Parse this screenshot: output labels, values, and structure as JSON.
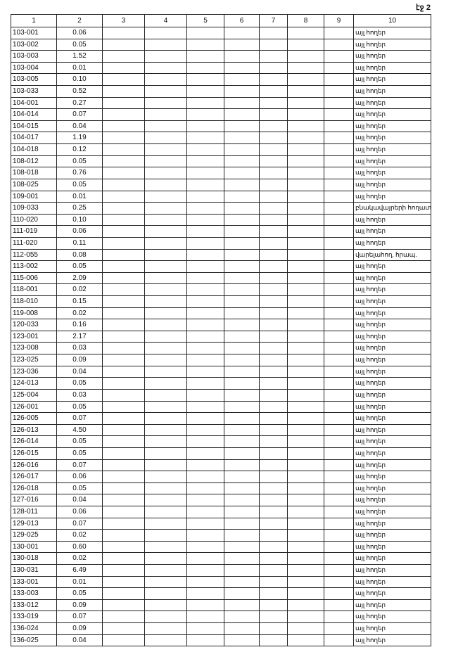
{
  "page_label": "էջ 2",
  "columns": [
    "1",
    "2",
    "3",
    "4",
    "5",
    "6",
    "7",
    "8",
    "9",
    "10"
  ],
  "rows": [
    [
      "103-001",
      "0.06",
      "այլ հողեր"
    ],
    [
      "103-002",
      "0.05",
      "այլ հողեր"
    ],
    [
      "103-003",
      "1.52",
      "այլ հողեր"
    ],
    [
      "103-004",
      "0.01",
      "այլ հողեր"
    ],
    [
      "103-005",
      "0.10",
      "այլ հողեր"
    ],
    [
      "103-033",
      "0.52",
      "այլ հողեր"
    ],
    [
      "104-001",
      "0.27",
      "այլ հողեր"
    ],
    [
      "104-014",
      "0.07",
      "այլ հողեր"
    ],
    [
      "104-015",
      "0.04",
      "այլ հողեր"
    ],
    [
      "104-017",
      "1.19",
      "այլ հողեր"
    ],
    [
      "104-018",
      "0.12",
      "այլ հողեր"
    ],
    [
      "108-012",
      "0.05",
      "այլ հողեր"
    ],
    [
      "108-018",
      "0.76",
      "այլ հողեր"
    ],
    [
      "108-025",
      "0.05",
      "այլ հողեր"
    ],
    [
      "109-001",
      "0.01",
      "այլ հողեր"
    ],
    [
      "109-033",
      "0.25",
      "բնակավայրերի հողատ."
    ],
    [
      "110-020",
      "0.10",
      "այլ հողեր"
    ],
    [
      "111-019",
      "0.06",
      "այլ հողեր"
    ],
    [
      "111-020",
      "0.11",
      "այլ հողեր"
    ],
    [
      "112-055",
      "0.08",
      "վարելահող. հրապ."
    ],
    [
      "113-002",
      "0.05",
      "այլ հողեր"
    ],
    [
      "115-006",
      "2.09",
      "այլ հողեր"
    ],
    [
      "118-001",
      "0.02",
      "այլ հողեր"
    ],
    [
      "118-010",
      "0.15",
      "այլ հողեր"
    ],
    [
      "119-008",
      "0.02",
      "այլ հողեր"
    ],
    [
      "120-033",
      "0.16",
      "այլ հողեր"
    ],
    [
      "123-001",
      "2.17",
      "այլ հողեր"
    ],
    [
      "123-008",
      "0.03",
      "այլ հողեր"
    ],
    [
      "123-025",
      "0.09",
      "այլ հողեր"
    ],
    [
      "123-036",
      "0.04",
      "այլ հողեր"
    ],
    [
      "124-013",
      "0.05",
      "այլ հողեր"
    ],
    [
      "125-004",
      "0.03",
      "այլ հողեր"
    ],
    [
      "126-001",
      "0.05",
      "այլ հողեր"
    ],
    [
      "126-005",
      "0.07",
      "այլ հողեր"
    ],
    [
      "126-013",
      "4.50",
      "այլ հողեր"
    ],
    [
      "126-014",
      "0.05",
      "այլ հողեր"
    ],
    [
      "126-015",
      "0.05",
      "այլ հողեր"
    ],
    [
      "126-016",
      "0.07",
      "այլ հողեր"
    ],
    [
      "126-017",
      "0.06",
      "այլ հողեր"
    ],
    [
      "126-018",
      "0.05",
      "այլ հողեր"
    ],
    [
      "127-016",
      "0.04",
      "այլ հողեր"
    ],
    [
      "128-011",
      "0.06",
      "այլ հողեր"
    ],
    [
      "129-013",
      "0.07",
      "այլ հողեր"
    ],
    [
      "129-025",
      "0.02",
      "այլ հողեր"
    ],
    [
      "130-001",
      "0.60",
      "այլ հողեր"
    ],
    [
      "130-018",
      "0.02",
      "այլ հողեր"
    ],
    [
      "130-031",
      "6.49",
      "այլ հողեր"
    ],
    [
      "133-001",
      "0.01",
      "այլ հողեր"
    ],
    [
      "133-003",
      "0.05",
      "այլ հողեր"
    ],
    [
      "133-012",
      "0.09",
      "այլ հողեր"
    ],
    [
      "133-019",
      "0.07",
      "այլ հողեր"
    ],
    [
      "136-024",
      "0.09",
      "այլ հողեր"
    ],
    [
      "136-025",
      "0.04",
      "այլ հողեր"
    ]
  ]
}
